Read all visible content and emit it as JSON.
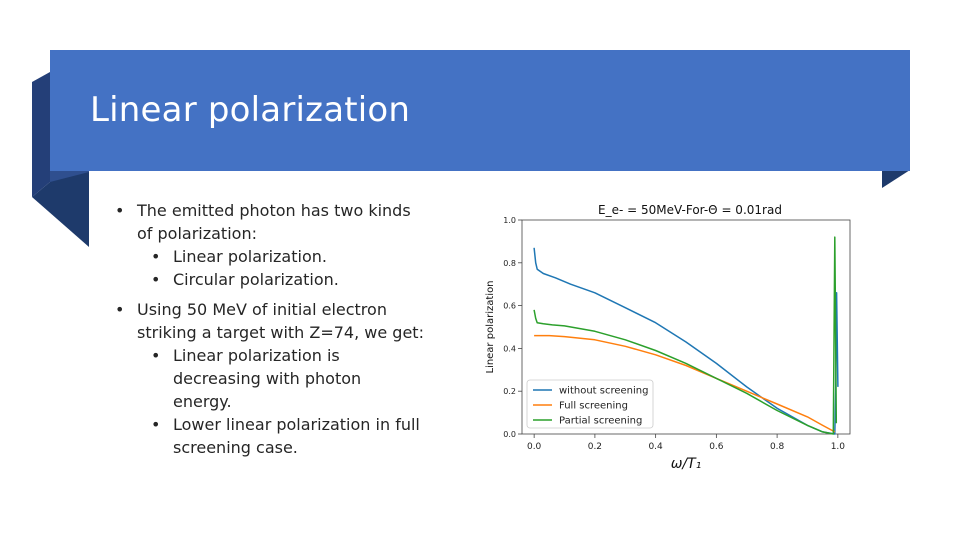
{
  "slide": {
    "title": "Linear polarization",
    "colors": {
      "band": "#4472c4",
      "fold_dark": "#2f4f8f",
      "text": "#262626"
    }
  },
  "bullets": [
    {
      "level": 1,
      "lines": [
        "The emitted photon has two kinds",
        "of polarization:"
      ]
    },
    {
      "level": 2,
      "lines": [
        "Linear polarization."
      ]
    },
    {
      "level": 2,
      "lines": [
        "Circular polarization."
      ]
    },
    {
      "level": 1,
      "lines": [
        "Using 50 MeV of initial electron",
        "striking a target with Z=74, we get:"
      ]
    },
    {
      "level": 2,
      "lines": [
        "Linear polarization is",
        "decreasing with photon",
        "energy."
      ]
    },
    {
      "level": 2,
      "lines": [
        "Lower linear polarization in full",
        "screening case."
      ]
    }
  ],
  "chart_data": {
    "type": "line",
    "title": "E_e- = 50MeV-For-Θ = 0.01rad",
    "xlabel": "ω/T₁",
    "ylabel": "Linear polarization",
    "xlim": [
      -0.04,
      1.04
    ],
    "ylim": [
      0.0,
      1.0
    ],
    "xticks": [
      "0.0",
      "0.2",
      "0.4",
      "0.6",
      "0.8",
      "1.0"
    ],
    "yticks": [
      "0.0",
      "0.2",
      "0.4",
      "0.6",
      "0.8",
      "1.0"
    ],
    "legend": "lower-left",
    "series": [
      {
        "name": "without screening",
        "color": "#1f77b4",
        "x": [
          0.0,
          0.005,
          0.01,
          0.03,
          0.07,
          0.12,
          0.2,
          0.3,
          0.4,
          0.5,
          0.6,
          0.7,
          0.8,
          0.9,
          0.95,
          0.99,
          0.993,
          0.996,
          1.0
        ],
        "y": [
          0.87,
          0.8,
          0.77,
          0.75,
          0.73,
          0.7,
          0.66,
          0.59,
          0.52,
          0.43,
          0.33,
          0.22,
          0.12,
          0.04,
          0.01,
          0.0,
          0.2,
          0.66,
          0.22
        ]
      },
      {
        "name": "Full screening",
        "color": "#ff7f0e",
        "x": [
          0.0,
          0.05,
          0.1,
          0.2,
          0.3,
          0.4,
          0.5,
          0.6,
          0.7,
          0.8,
          0.9,
          0.95,
          0.99
        ],
        "y": [
          0.46,
          0.46,
          0.455,
          0.44,
          0.41,
          0.37,
          0.32,
          0.26,
          0.2,
          0.14,
          0.08,
          0.04,
          0.01
        ]
      },
      {
        "name": "Partial screening",
        "color": "#2ca02c",
        "x": [
          0.0,
          0.005,
          0.01,
          0.03,
          0.06,
          0.1,
          0.2,
          0.3,
          0.4,
          0.5,
          0.6,
          0.7,
          0.8,
          0.9,
          0.95,
          0.985,
          0.99,
          0.992,
          0.995
        ],
        "y": [
          0.58,
          0.54,
          0.52,
          0.515,
          0.51,
          0.505,
          0.48,
          0.44,
          0.39,
          0.33,
          0.26,
          0.19,
          0.11,
          0.04,
          0.01,
          0.0,
          0.92,
          0.6,
          0.05
        ]
      }
    ]
  }
}
